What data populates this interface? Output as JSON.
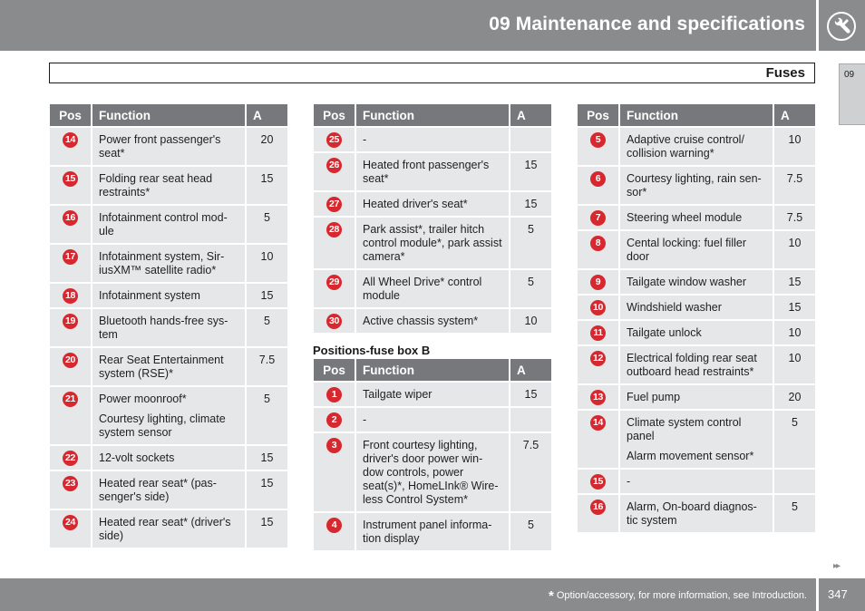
{
  "header": {
    "chapter_title": "09 Maintenance and specifications"
  },
  "section": {
    "title": "Fuses"
  },
  "side_tab": {
    "label": "09"
  },
  "table_headers": {
    "pos": "Pos",
    "function": "Function",
    "amp": "A"
  },
  "subheading": "Positions-fuse box B",
  "table1": [
    {
      "pos": "14",
      "lines": [
        "Power front passenger's seat*"
      ],
      "amp": "20"
    },
    {
      "pos": "15",
      "lines": [
        "Folding rear seat head restraints*"
      ],
      "amp": "15"
    },
    {
      "pos": "16",
      "lines": [
        "Infotainment control mod-ule"
      ],
      "amp": "5"
    },
    {
      "pos": "17",
      "lines": [
        "Infotainment system, Sir-iusXM™ satellite radio*"
      ],
      "amp": "10"
    },
    {
      "pos": "18",
      "lines": [
        "Infotainment system"
      ],
      "amp": "15"
    },
    {
      "pos": "19",
      "lines": [
        "Bluetooth hands-free sys-tem"
      ],
      "amp": "5"
    },
    {
      "pos": "20",
      "lines": [
        "Rear Seat Entertainment system (RSE)*"
      ],
      "amp": "7.5"
    },
    {
      "pos": "21",
      "lines": [
        "Power moonroof*",
        "Courtesy lighting, climate system sensor"
      ],
      "amp": "5"
    },
    {
      "pos": "22",
      "lines": [
        "12-volt sockets"
      ],
      "amp": "15"
    },
    {
      "pos": "23",
      "lines": [
        "Heated rear seat* (pas-senger's side)"
      ],
      "amp": "15"
    },
    {
      "pos": "24",
      "lines": [
        "Heated rear seat* (driver's side)"
      ],
      "amp": "15"
    }
  ],
  "table2": [
    {
      "pos": "25",
      "lines": [
        "-"
      ],
      "amp": ""
    },
    {
      "pos": "26",
      "lines": [
        "Heated front passenger's seat*"
      ],
      "amp": "15"
    },
    {
      "pos": "27",
      "lines": [
        "Heated driver's seat*"
      ],
      "amp": "15"
    },
    {
      "pos": "28",
      "lines": [
        "Park assist*, trailer hitch control module*, park assist camera*"
      ],
      "amp": "5"
    },
    {
      "pos": "29",
      "lines": [
        "All Wheel Drive* control module"
      ],
      "amp": "5"
    },
    {
      "pos": "30",
      "lines": [
        "Active chassis system*"
      ],
      "amp": "10"
    }
  ],
  "table3": [
    {
      "pos": "1",
      "lines": [
        "Tailgate wiper"
      ],
      "amp": "15"
    },
    {
      "pos": "2",
      "lines": [
        "-"
      ],
      "amp": ""
    },
    {
      "pos": "3",
      "lines": [
        "Front courtesy lighting, driver's door power win-dow controls, power seat(s)*, HomeLInk® Wire-less Control System*"
      ],
      "amp": "7.5"
    },
    {
      "pos": "4",
      "lines": [
        "Instrument panel informa-tion display"
      ],
      "amp": "5"
    }
  ],
  "table4": [
    {
      "pos": "5",
      "lines": [
        "Adaptive cruise control/ collision warning*"
      ],
      "amp": "10"
    },
    {
      "pos": "6",
      "lines": [
        "Courtesy lighting, rain sen-sor*"
      ],
      "amp": "7.5"
    },
    {
      "pos": "7",
      "lines": [
        "Steering wheel module"
      ],
      "amp": "7.5"
    },
    {
      "pos": "8",
      "lines": [
        "Cental locking: fuel filler door"
      ],
      "amp": "10"
    },
    {
      "pos": "9",
      "lines": [
        "Tailgate window washer"
      ],
      "amp": "15"
    },
    {
      "pos": "10",
      "lines": [
        "Windshield washer"
      ],
      "amp": "15"
    },
    {
      "pos": "11",
      "lines": [
        "Tailgate unlock"
      ],
      "amp": "10"
    },
    {
      "pos": "12",
      "lines": [
        "Electrical folding rear seat outboard head restraints*"
      ],
      "amp": "10"
    },
    {
      "pos": "13",
      "lines": [
        "Fuel pump"
      ],
      "amp": "20"
    },
    {
      "pos": "14",
      "lines": [
        "Climate system control panel",
        "Alarm movement sensor*"
      ],
      "amp": "5"
    },
    {
      "pos": "15",
      "lines": [
        "-"
      ],
      "amp": ""
    },
    {
      "pos": "16",
      "lines": [
        "Alarm, On-board diagnos-tic system"
      ],
      "amp": "5"
    }
  ],
  "footer": {
    "star": "*",
    "footnote": "Option/accessory, for more information, see Introduction.",
    "page_number": "347",
    "next_page_icon": "double-arrow-right-icon"
  },
  "colors": {
    "bar_gray": "#8a8b8d",
    "header_gray": "#77787b",
    "cell_gray": "#e6e7e8",
    "badge_red": "#d7282f"
  }
}
